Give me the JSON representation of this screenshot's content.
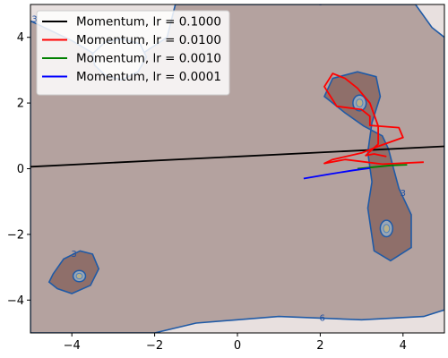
{
  "chart_data": {
    "type": "line",
    "title": "",
    "xlabel": "",
    "ylabel": "",
    "xlim": [
      -5,
      5
    ],
    "ylim": [
      -5,
      5
    ],
    "xticks": [
      -4,
      -2,
      0,
      2,
      4
    ],
    "yticks": [
      -4,
      -2,
      0,
      2,
      4
    ],
    "legend_position": "top-left",
    "colors": {
      "background_field": "#bba9a6",
      "light_region": "#e8e0df",
      "mid_region": "#b4a29f",
      "dark_region": "#8f6f6a",
      "contour_line": "#1f5aa6"
    },
    "contour_labels": [
      "3",
      "6"
    ],
    "series": [
      {
        "name": "Momentum, lr = 0.1000",
        "color": "#000000",
        "x": [
          -5.0,
          5.0
        ],
        "y": [
          0.06,
          0.68
        ]
      },
      {
        "name": "Momentum, lr = 0.0100",
        "color": "#ff0000",
        "x": [
          4.5,
          3.5,
          2.6,
          2.1,
          2.3,
          3.0,
          3.4,
          4.0,
          3.9,
          3.2,
          3.2,
          3.0,
          2.4,
          2.1,
          2.3,
          2.6,
          2.9,
          3.2,
          3.4,
          3.4,
          3.2,
          3.1,
          3.3,
          3.6
        ],
        "y": [
          0.2,
          0.14,
          0.28,
          0.16,
          0.28,
          0.48,
          0.68,
          0.95,
          1.25,
          1.32,
          1.6,
          1.8,
          1.9,
          2.5,
          2.9,
          2.75,
          2.45,
          2.0,
          1.3,
          0.75,
          0.52,
          0.4,
          0.45,
          0.37
        ]
      },
      {
        "name": "Momentum, lr = 0.0010",
        "color": "#008000",
        "x": [
          2.9,
          3.3,
          3.7,
          4.1
        ],
        "y": [
          0.0,
          0.05,
          0.1,
          0.12
        ]
      },
      {
        "name": "Momentum, lr = 0.0001",
        "color": "#0000ff",
        "x": [
          1.6,
          2.2,
          2.8,
          3.2
        ],
        "y": [
          -0.3,
          -0.17,
          -0.05,
          0.02
        ]
      }
    ]
  }
}
